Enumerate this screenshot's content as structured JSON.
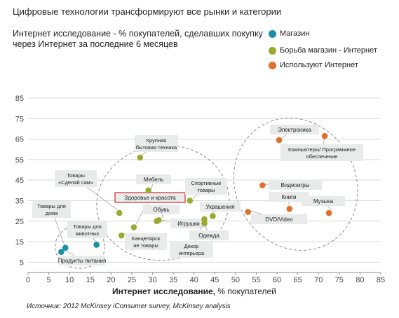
{
  "title": "Цифровые технологии трансформируют все рынки и категории",
  "subtitle": "Интернет исследование - % покупателей, сделавших покупку через Интернет за последние 6 месяцев",
  "legend": [
    {
      "label": "Магазин",
      "color": "#1a8fa6"
    },
    {
      "label": "Борьба магазин - Интернет",
      "color": "#9aaa2e"
    },
    {
      "label": "Используют Интернет",
      "color": "#e0702a"
    }
  ],
  "xaxis_label_bold": "Интернет исследование,",
  "xaxis_label_unit": " % покупателей",
  "source": "Источник:  2012 McKinsey iConsumer survey, McKinsey analysis",
  "chart_data": {
    "type": "scatter",
    "xlim": [
      0,
      85
    ],
    "ylim": [
      0,
      85
    ],
    "x_ticks": [
      0,
      5,
      10,
      15,
      20,
      25,
      30,
      35,
      40,
      45,
      50,
      55,
      60,
      65,
      70,
      75,
      80,
      85
    ],
    "y_ticks": [
      5,
      15,
      25,
      35,
      45,
      55,
      65,
      75,
      85
    ],
    "grid": "horizontal",
    "legend_position": "top-right",
    "series": [
      {
        "name": "Магазин",
        "color": "#1a8fa6",
        "points": [
          {
            "label": "Товары для дома",
            "x": 9,
            "y": 12
          },
          {
            "label": "Товары для животных",
            "x": 16.5,
            "y": 13.5
          },
          {
            "label": "Продукты питания",
            "x": 8,
            "y": 10
          }
        ]
      },
      {
        "name": "Борьба магазин - Интернет",
        "color": "#9aaa2e",
        "points": [
          {
            "label": "Крупная бытовая техника",
            "x": 27,
            "y": 56
          },
          {
            "label": "Товары «Сделай сам»",
            "x": 22,
            "y": 29
          },
          {
            "label": "Мебель",
            "x": 29,
            "y": 40
          },
          {
            "label": "Здоровье и красота",
            "x": 25.5,
            "y": 22
          },
          {
            "label": "Канцелярские товары",
            "x": 22.5,
            "y": 18
          },
          {
            "label": "Обувь",
            "x": 31.5,
            "y": 25.5
          },
          {
            "label": "Игрушки",
            "x": 31,
            "y": 25
          },
          {
            "label": "Спортивные товары",
            "x": 39,
            "y": 35
          },
          {
            "label": "Украшения",
            "x": 44.5,
            "y": 27.5
          },
          {
            "label": "Одежда",
            "x": 42.5,
            "y": 26
          },
          {
            "label": "Декор интерьера",
            "x": 42.5,
            "y": 24
          }
        ]
      },
      {
        "name": "Используют Интернет",
        "color": "#e0702a",
        "points": [
          {
            "label": "Электроника",
            "x": 60.5,
            "y": 64.5
          },
          {
            "label": "Компьютеры/ Программное обеспечение",
            "x": 71.5,
            "y": 66.5
          },
          {
            "label": "Видеоигры",
            "x": 56.5,
            "y": 42.5
          },
          {
            "label": "Книги",
            "x": 63,
            "y": 31
          },
          {
            "label": "Музыка",
            "x": 72.5,
            "y": 29
          },
          {
            "label": "DVD/Video",
            "x": 53,
            "y": 29.5
          }
        ]
      }
    ],
    "annotations": [
      {
        "text": "Товары для дома",
        "lines": [
          "Товары для",
          "дома"
        ]
      },
      {
        "text": "Товары для животных",
        "lines": [
          "Товары  для",
          "животных"
        ]
      },
      {
        "text": "Продукты питания",
        "lines": [
          "Продукты питания"
        ]
      },
      {
        "text": "Крупная бытовая техника",
        "lines": [
          "Крупная",
          "бытовая техника"
        ]
      },
      {
        "text": "Товары «Сделай сам»",
        "lines": [
          "Товары",
          "«Сделай сам»"
        ]
      },
      {
        "text": "Мебель",
        "lines": [
          "Мебель"
        ]
      },
      {
        "text": "Здоровье и красота",
        "lines": [
          "Здоровье и красота"
        ],
        "highlight": true
      },
      {
        "text": "Обувь",
        "lines": [
          "Обувь"
        ]
      },
      {
        "text": "Игрушки",
        "lines": [
          "Игрушки"
        ]
      },
      {
        "text": "Канцелярские товары",
        "lines": [
          "Канцелярск",
          "ие товары"
        ]
      },
      {
        "text": "Декор интерьера",
        "lines": [
          "Декор",
          "интерьера"
        ]
      },
      {
        "text": "Спортивные товары",
        "lines": [
          "Спортивные",
          "товары"
        ]
      },
      {
        "text": "Украшения",
        "lines": [
          "Украшения"
        ]
      },
      {
        "text": "Одежда",
        "lines": [
          "Одежда"
        ]
      },
      {
        "text": "Электроника",
        "lines": [
          "Электроника"
        ]
      },
      {
        "text": "Компьютеры/ Программное обеспечение",
        "lines": [
          "Компьютеры/ Программное",
          "обеспечение"
        ]
      },
      {
        "text": "Видеоигры",
        "lines": [
          "Видеоигры"
        ]
      },
      {
        "text": "Книги",
        "lines": [
          "Книги"
        ]
      },
      {
        "text": "Музыка",
        "lines": [
          "Музыка"
        ]
      },
      {
        "text": "DVD/Video",
        "lines": [
          "DVD/Video"
        ]
      }
    ]
  }
}
